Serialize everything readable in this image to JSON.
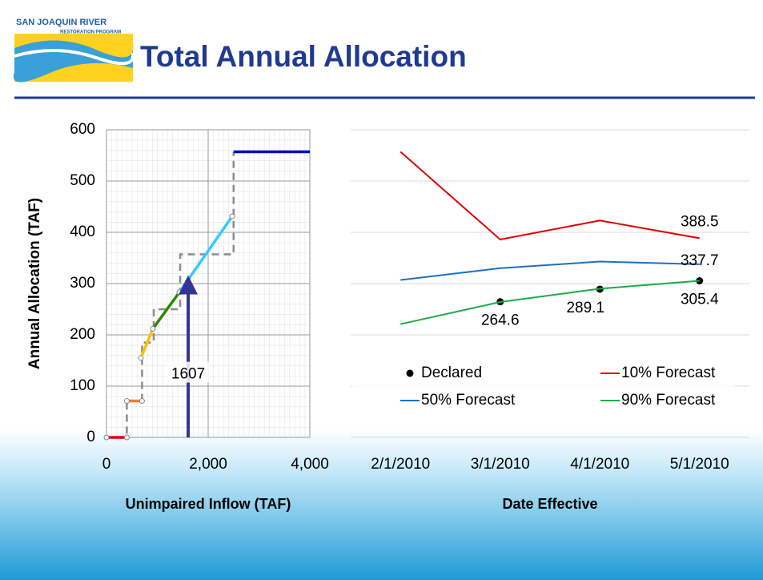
{
  "header": {
    "logo_line1": "SAN JOAQUIN RIVER",
    "logo_line2": "RESTORATION PROGRAM",
    "title": "Total Annual Allocation"
  },
  "chart_data": [
    {
      "type": "line",
      "ylabel": "Annual Allocation (TAF)",
      "xlabel": "Unimpaired Inflow (TAF)",
      "xlim": [
        0,
        4000
      ],
      "xticks": [
        0,
        {
          "value": 2000,
          "label": "2,000"
        },
        {
          "value": 4000,
          "label": "4,000"
        }
      ],
      "ylim": [
        0,
        600
      ],
      "yticks": [
        0,
        100,
        200,
        300,
        400,
        500,
        600
      ],
      "grid": true,
      "minor_grid": true,
      "series": [
        {
          "color": "#8c8c8c",
          "dashed": true,
          "markers": false,
          "x": [
            0,
            400,
            400,
            700,
            700,
            930,
            930,
            1450,
            1450,
            2500,
            2500
          ],
          "values": [
            0,
            0,
            71,
            71,
            185,
            185,
            250,
            250,
            357,
            357,
            557
          ]
        },
        {
          "color": "#e00000",
          "markers": true,
          "x": [
            0,
            400
          ],
          "values": [
            0,
            0
          ]
        },
        {
          "color": "#ed7d31",
          "markers": true,
          "x": [
            400,
            700
          ],
          "values": [
            71,
            71
          ]
        },
        {
          "color": "#ffc000",
          "markers": true,
          "x": [
            677,
            913
          ],
          "values": [
            155,
            212
          ]
        },
        {
          "color": "#2e8b00",
          "markers": true,
          "x": [
            913,
            1433
          ],
          "values": [
            212,
            283
          ]
        },
        {
          "color": "#33ccff",
          "markers": true,
          "x": [
            1433,
            2472
          ],
          "values": [
            283,
            431
          ]
        },
        {
          "color": "#0000cc",
          "markers": false,
          "x": [
            2500,
            4000
          ],
          "values": [
            557,
            557
          ]
        }
      ],
      "annotation": {
        "label": "1607",
        "x": 1607,
        "y": 310,
        "color": "#333399"
      }
    },
    {
      "type": "line",
      "xlabel": "Date Effective",
      "categories": [
        "2/1/2010",
        "3/1/2010",
        "4/1/2010",
        "5/1/2010"
      ],
      "ylim": [
        0,
        600
      ],
      "yticks": [
        0,
        100,
        200,
        300,
        400,
        500,
        600
      ],
      "grid": true,
      "series": [
        {
          "name": "Declared",
          "color": "#000000",
          "style": "markers",
          "values": [
            null,
            264.6,
            289.1,
            305.4
          ],
          "value_labels": [
            null,
            "264.6",
            "289.1",
            "305.4"
          ],
          "label_position": "below"
        },
        {
          "name": "10% Forecast",
          "color": "#e00000",
          "style": "line",
          "values": [
            557,
            386,
            423,
            388.5
          ],
          "value_labels": [
            null,
            null,
            null,
            "388.5"
          ],
          "label_position": "above"
        },
        {
          "name": "50% Forecast",
          "color": "#1f6fbf",
          "style": "line",
          "values": [
            307,
            330,
            343,
            337.7
          ],
          "value_labels": [
            null,
            null,
            null,
            "337.7"
          ],
          "label_position": "center"
        },
        {
          "name": "90% Forecast",
          "color": "#1faa4a",
          "style": "line",
          "values": [
            221,
            264,
            290,
            305.4
          ]
        }
      ]
    }
  ]
}
